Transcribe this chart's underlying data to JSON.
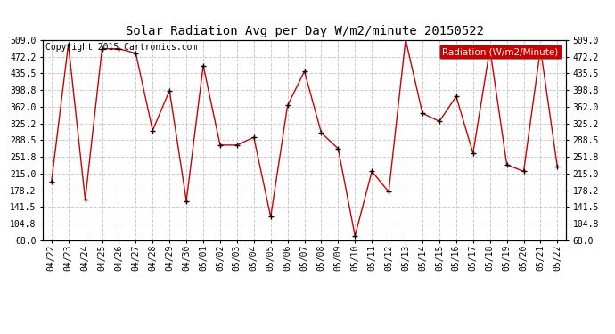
{
  "title": "Solar Radiation Avg per Day W/m2/minute 20150522",
  "copyright": "Copyright 2015 Cartronics.com",
  "legend_label": "Radiation (W/m2/Minute)",
  "dates": [
    "04/22",
    "04/23",
    "04/24",
    "04/25",
    "04/26",
    "04/27",
    "04/28",
    "04/29",
    "04/30",
    "05/01",
    "05/02",
    "05/03",
    "05/04",
    "05/05",
    "05/06",
    "05/07",
    "05/08",
    "05/09",
    "05/10",
    "05/11",
    "05/12",
    "05/13",
    "05/14",
    "05/15",
    "05/16",
    "05/17",
    "05/18",
    "05/19",
    "05/20",
    "05/21",
    "05/22"
  ],
  "values": [
    197,
    500,
    158,
    490,
    490,
    480,
    310,
    398,
    155,
    453,
    278,
    278,
    295,
    120,
    365,
    440,
    305,
    270,
    78,
    220,
    175,
    510,
    348,
    330,
    385,
    260,
    490,
    235,
    220,
    490,
    230
  ],
  "line_color": "#cc0000",
  "marker_color": "#000000",
  "background_color": "#ffffff",
  "grid_color": "#cccccc",
  "legend_bg": "#cc0000",
  "legend_text_color": "#ffffff",
  "ylim": [
    68.0,
    509.0
  ],
  "yticks": [
    68.0,
    104.8,
    141.5,
    178.2,
    215.0,
    251.8,
    288.5,
    325.2,
    362.0,
    398.8,
    435.5,
    472.2,
    509.0
  ],
  "title_fontsize": 10,
  "copyright_fontsize": 7,
  "legend_fontsize": 7.5,
  "tick_fontsize": 7,
  "ytick_fontsize": 7
}
